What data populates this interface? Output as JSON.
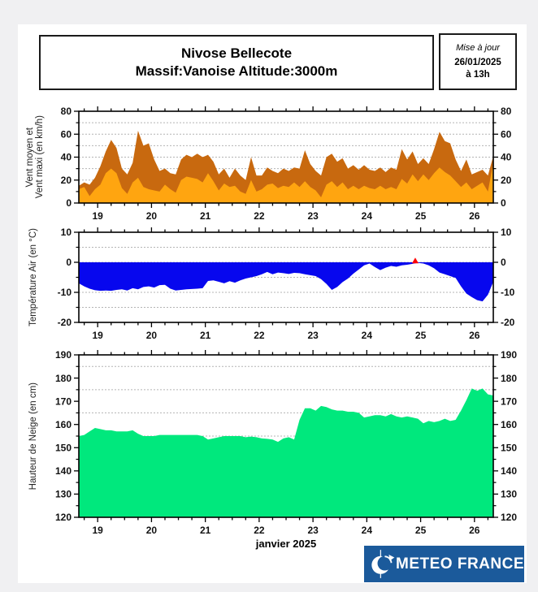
{
  "page": {
    "background": "#f0f0f2",
    "panel_background": "#ffffff"
  },
  "header": {
    "title_line1": "Nivose Bellecote",
    "title_line2": "Massif:Vanoise Altitude:3000m",
    "update_label": "Mise à jour",
    "update_date": "26/01/2025",
    "update_time": "à 13h"
  },
  "footer": {
    "brand": "METEO FRANCE",
    "brand_bg": "#1b5a9b"
  },
  "chart_data": [
    {
      "id": "wind",
      "type": "area",
      "ylabel_line1": "Vent moyen et",
      "ylabel_line2": "Vent maxi (en km/h)",
      "xlim": [
        18.65,
        26.35
      ],
      "ylim": [
        0,
        80
      ],
      "yticks": [
        0,
        20,
        40,
        60,
        80
      ],
      "yminor": [
        10,
        30,
        50,
        70
      ],
      "ygrid": [
        10,
        20,
        30,
        40,
        50,
        60,
        70
      ],
      "xticks_major": [
        19,
        20,
        21,
        22,
        23,
        24,
        25,
        26
      ],
      "x_start": 18.65,
      "x_step": 0.1,
      "grid": true,
      "series": [
        {
          "name": "vent-maxi",
          "color": "#c8690f",
          "baseline": 0,
          "values": [
            15,
            18,
            16,
            22,
            32,
            45,
            55,
            48,
            30,
            25,
            35,
            63,
            50,
            52,
            38,
            28,
            30,
            26,
            25,
            38,
            42,
            40,
            43,
            40,
            42,
            36,
            25,
            30,
            22,
            30,
            24,
            20,
            40,
            24,
            24,
            31,
            28,
            26,
            30,
            28,
            31,
            30,
            46,
            34,
            28,
            24,
            40,
            43,
            36,
            39,
            30,
            33,
            29,
            33,
            29,
            28,
            31,
            27,
            31,
            29,
            47,
            38,
            45,
            34,
            39,
            34,
            47,
            62,
            54,
            52,
            38,
            28,
            38,
            25,
            27,
            29,
            24,
            41
          ]
        },
        {
          "name": "vent-moyen",
          "color": "#ffa510",
          "baseline": 0,
          "values": [
            12,
            14,
            6,
            12,
            16,
            26,
            30,
            26,
            13,
            8,
            18,
            22,
            14,
            12,
            11,
            10,
            16,
            12,
            9,
            20,
            23,
            22,
            21,
            18,
            26,
            19,
            11,
            17,
            14,
            15,
            10,
            8,
            20,
            10,
            12,
            16,
            17,
            13,
            15,
            14,
            18,
            14,
            19,
            14,
            11,
            5,
            16,
            19,
            14,
            18,
            12,
            15,
            12,
            15,
            13,
            12,
            15,
            12,
            14,
            12,
            21,
            17,
            25,
            19,
            25,
            20,
            26,
            31,
            27,
            24,
            19,
            14,
            18,
            12,
            15,
            18,
            10,
            35
          ]
        }
      ]
    },
    {
      "id": "temperature",
      "type": "area",
      "ylabel_line1": "Température Air (en °C)",
      "xlim": [
        18.65,
        26.35
      ],
      "ylim": [
        -20,
        10
      ],
      "yticks": [
        -20,
        -10,
        0,
        10
      ],
      "yminor": [
        -15,
        -5,
        5
      ],
      "ygrid": [
        -15,
        -10,
        -5,
        0,
        5
      ],
      "xticks_major": [
        19,
        20,
        21,
        22,
        23,
        24,
        25,
        26
      ],
      "x_start": 18.65,
      "x_step": 0.1,
      "grid": true,
      "marker": {
        "x": 24.9,
        "y": 0.35,
        "color": "#ff0000"
      },
      "series": [
        {
          "name": "temperature-air",
          "color": "#0707ee",
          "baseline": 0,
          "values": [
            -7,
            -8,
            -8.8,
            -9.3,
            -9.5,
            -9.4,
            -9.5,
            -9.2,
            -9,
            -9.4,
            -8.6,
            -9,
            -8.2,
            -8,
            -8.4,
            -7.6,
            -7.5,
            -8.8,
            -9.4,
            -9.2,
            -9,
            -8.9,
            -8.8,
            -8.6,
            -6.2,
            -6,
            -6.5,
            -7,
            -6.3,
            -6.8,
            -6,
            -5.4,
            -5,
            -4.6,
            -4,
            -3.2,
            -4,
            -3.4,
            -3.6,
            -3.9,
            -3.5,
            -3.6,
            -4,
            -4.3,
            -4.6,
            -5.6,
            -7.2,
            -9.2,
            -8.2,
            -6.6,
            -5.4,
            -3.8,
            -2.4,
            -1,
            -0.4,
            -1.6,
            -2.6,
            -1.8,
            -1.2,
            -1.5,
            -1,
            -0.8,
            -0.5,
            -0.2,
            -0.4,
            -1,
            -2,
            -3.4,
            -4,
            -4.6,
            -5.2,
            -8,
            -10.4,
            -11.6,
            -12.6,
            -13,
            -10.8,
            -6.5
          ]
        }
      ]
    },
    {
      "id": "snow",
      "type": "area",
      "ylabel_line1": "Hauteur de Neige (en cm)",
      "xlabel": "janvier 2025",
      "xlim": [
        18.65,
        26.35
      ],
      "ylim": [
        120,
        190
      ],
      "yticks": [
        120,
        130,
        140,
        150,
        160,
        170,
        180,
        190
      ],
      "yminor": [
        125,
        135,
        145,
        155,
        165,
        175,
        185
      ],
      "ygrid": [
        125,
        135,
        145,
        155,
        165,
        175,
        185
      ],
      "xticks_major": [
        19,
        20,
        21,
        22,
        23,
        24,
        25,
        26
      ],
      "x_start": 18.65,
      "x_step": 0.1,
      "grid": true,
      "series": [
        {
          "name": "hauteur-neige",
          "color": "#00e87d",
          "baseline": 120,
          "values": [
            155,
            155.5,
            157,
            158.5,
            158,
            157.5,
            157.5,
            157,
            157,
            157,
            157.5,
            156,
            155,
            155,
            155,
            155.5,
            155.5,
            155.5,
            155.5,
            155.5,
            155.5,
            155.5,
            155.5,
            155,
            153.5,
            154,
            154.5,
            155,
            155,
            155,
            155,
            154.5,
            154.8,
            154.5,
            154,
            153.8,
            153.5,
            152.5,
            154,
            154.5,
            153.5,
            162,
            167,
            167,
            166,
            168,
            167.5,
            166.5,
            166,
            166,
            165.5,
            165.5,
            165,
            163,
            163.5,
            164,
            164,
            163.5,
            164.5,
            163.5,
            163,
            163.5,
            163,
            162.5,
            160.5,
            161.5,
            161,
            161.5,
            162.5,
            161.5,
            162,
            166,
            170.5,
            175.5,
            174.5,
            175.5,
            173,
            172.5
          ]
        }
      ]
    }
  ]
}
